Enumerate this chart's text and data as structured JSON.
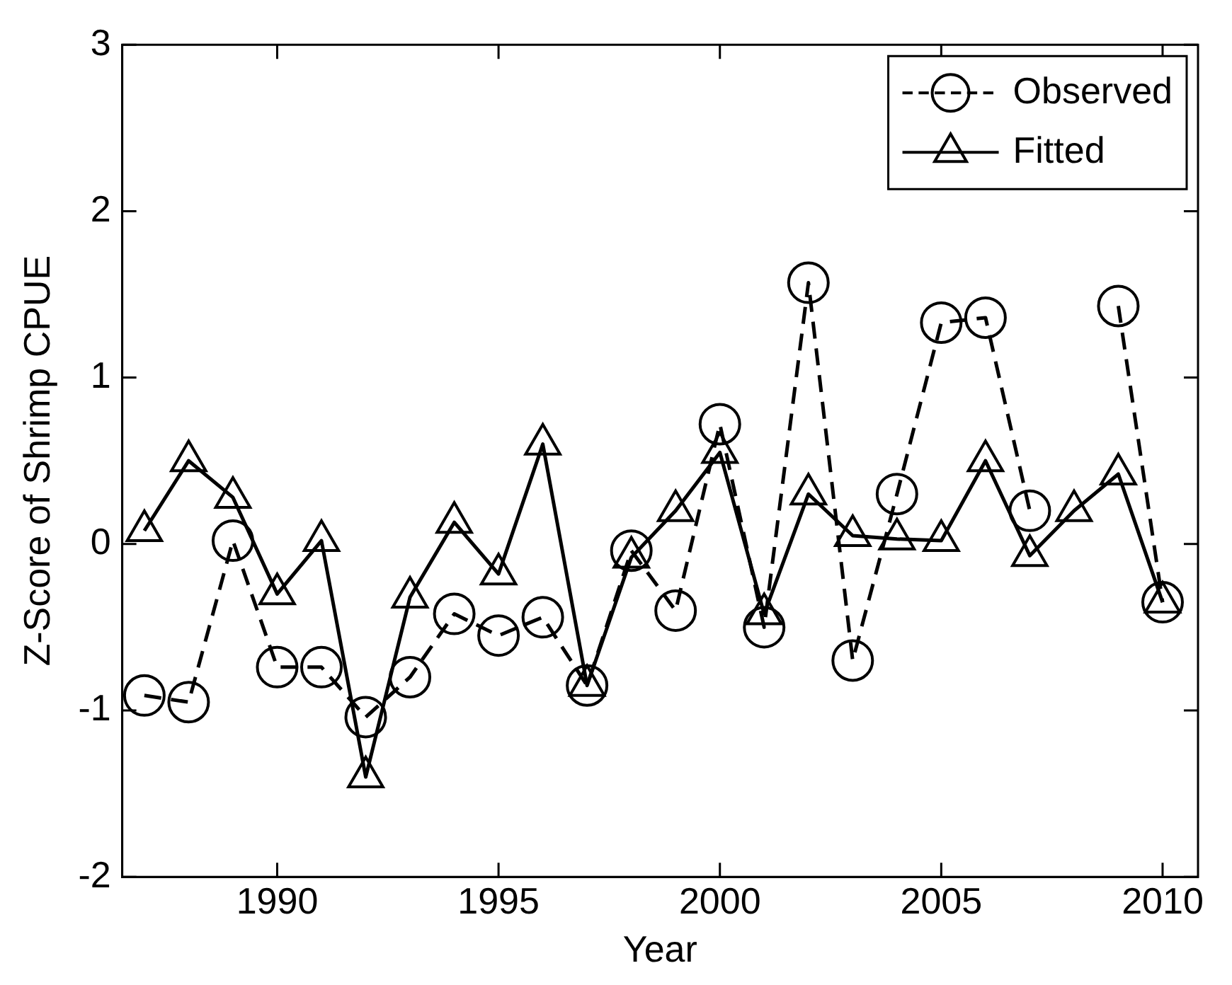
{
  "chart_data": {
    "type": "line",
    "xlabel": "Year",
    "ylabel": "Z-Score of Shrimp CPUE",
    "x": [
      1987,
      1988,
      1989,
      1990,
      1991,
      1992,
      1993,
      1994,
      1995,
      1996,
      1997,
      1998,
      1999,
      2000,
      2001,
      2002,
      2003,
      2004,
      2005,
      2006,
      2007,
      2008,
      2009,
      2010
    ],
    "series": [
      {
        "name": "Observed",
        "color": "#000000",
        "marker": "circle",
        "line_style": "dashed",
        "values": [
          -0.91,
          -0.95,
          0.02,
          -0.74,
          -0.74,
          -1.04,
          -0.8,
          -0.42,
          -0.55,
          -0.44,
          -0.85,
          -0.04,
          -0.4,
          0.72,
          -0.5,
          1.57,
          -0.7,
          0.3,
          1.33,
          1.36,
          0.2,
          null,
          1.43,
          -0.35
        ]
      },
      {
        "name": "Fitted",
        "color": "#000000",
        "marker": "triangle",
        "line_style": "solid",
        "values": [
          0.08,
          0.5,
          0.28,
          -0.3,
          0.02,
          -1.4,
          -0.32,
          0.13,
          -0.18,
          0.6,
          -0.85,
          -0.08,
          0.2,
          0.55,
          -0.42,
          0.3,
          0.05,
          0.03,
          0.02,
          0.5,
          -0.07,
          0.2,
          0.42,
          -0.35
        ]
      }
    ],
    "xlim": [
      1986.5,
      2010.8
    ],
    "xticks": [
      1990,
      1995,
      2000,
      2005,
      2010
    ],
    "ylim": [
      -2,
      3
    ],
    "yticks": [
      -2,
      -1,
      0,
      1,
      2,
      3
    ],
    "legend": "top right"
  }
}
